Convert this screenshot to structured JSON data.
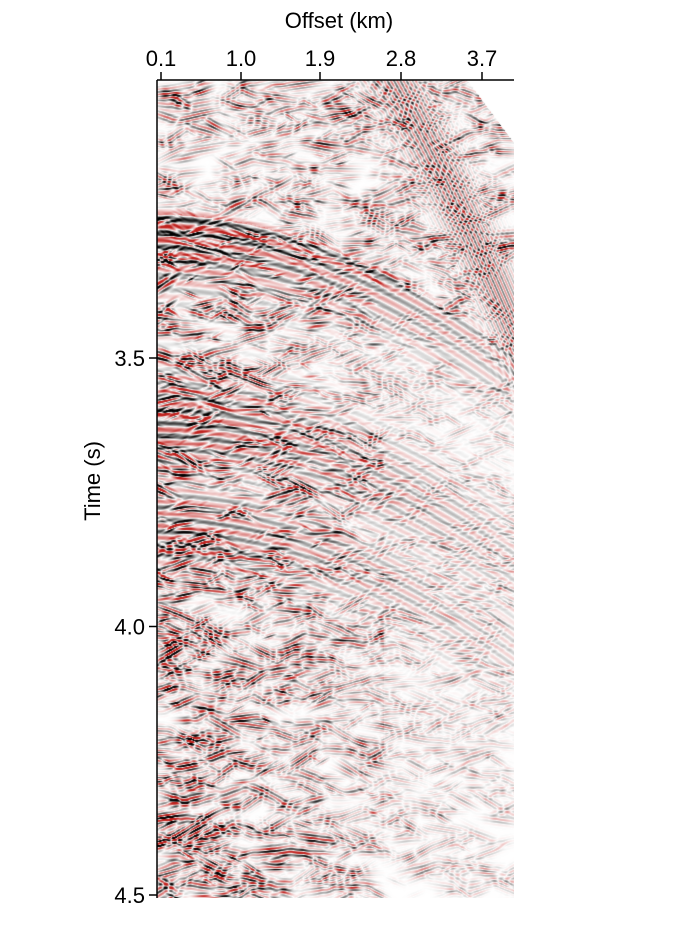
{
  "chart_data": {
    "type": "heatmap",
    "title": "",
    "xlabel": "Offset (km)",
    "ylabel": "Time (s)",
    "x_axis_position": "top",
    "x_ticks": [
      0.1,
      1.0,
      1.9,
      2.8,
      3.7
    ],
    "x_tick_labels": [
      "0.1",
      "1.0",
      "1.9",
      "2.8",
      "3.7"
    ],
    "xlim": [
      0.1,
      4.1
    ],
    "y_ticks": [
      3.5,
      4.0,
      4.5
    ],
    "y_tick_labels": [
      "3.5",
      "4.0",
      "4.5"
    ],
    "ylim": [
      3.02,
      4.5
    ],
    "y_inverted": true,
    "grid": false,
    "legend": "none",
    "colormap": {
      "negative": "#c0201c",
      "zero": "#ffffff",
      "positive": "#000000"
    },
    "events": [
      {
        "name": "",
        "apex_time": 3.24,
        "apex_offset": 0.1,
        "velocity_km_s": 3.05,
        "amplitude": 1.0
      },
      {
        "name": "",
        "apex_time": 3.62,
        "apex_offset": 0.1,
        "velocity_km_s": 3.0,
        "amplitude": 0.75
      },
      {
        "name": "",
        "apex_time": 3.8,
        "apex_offset": 0.1,
        "velocity_km_s": 2.9,
        "amplitude": 0.7
      },
      {
        "name": "",
        "apex_time": 2.55,
        "apex_offset": 0.1,
        "velocity_km_s": 1.75,
        "amplitude": 0.55
      }
    ]
  }
}
